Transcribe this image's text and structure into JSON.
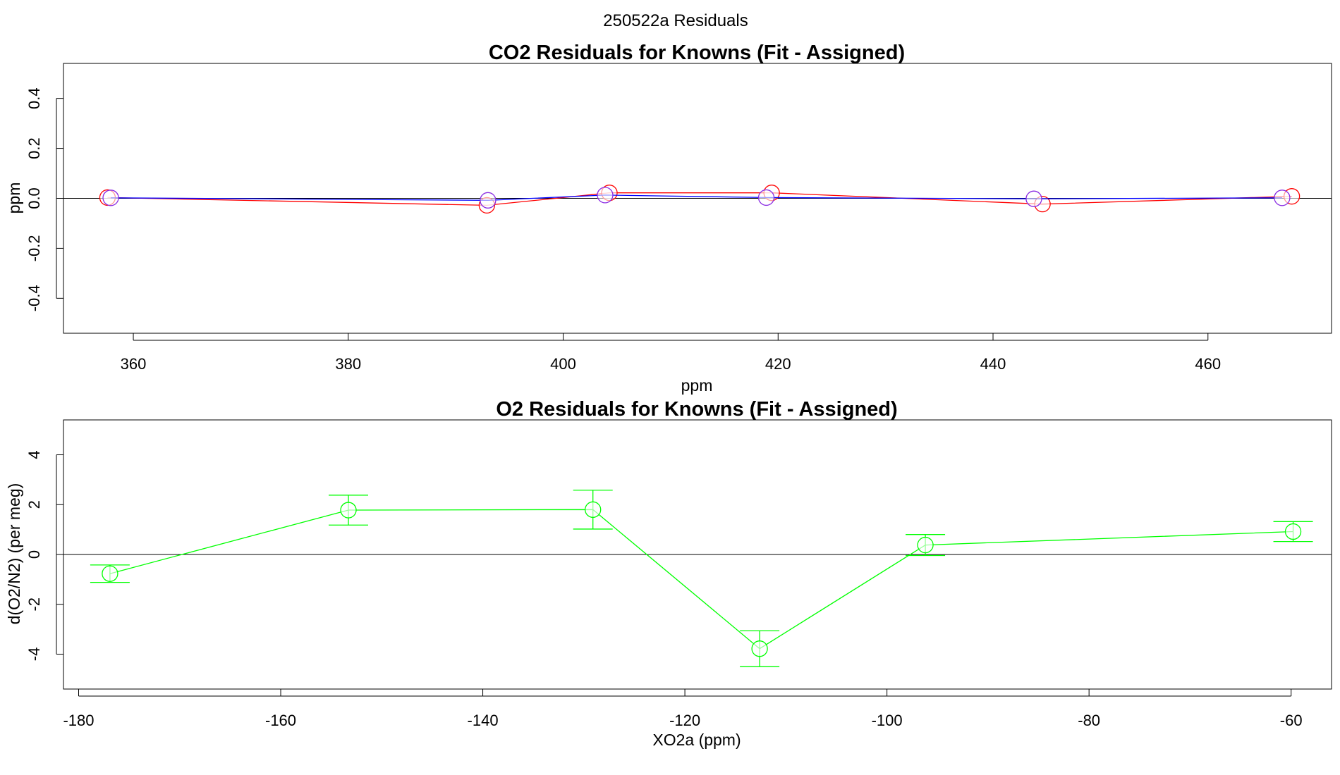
{
  "figure_title": "250522a  Residuals",
  "chart_data": [
    {
      "type": "line",
      "title": "CO2 Residuals for Knowns (Fit - Assigned)",
      "xlabel": "ppm",
      "ylabel": "ppm",
      "xlim": [
        353.5,
        471.5
      ],
      "ylim": [
        -0.54,
        0.54
      ],
      "xticks": [
        360,
        380,
        400,
        420,
        440,
        460
      ],
      "yticks": [
        -0.4,
        -0.2,
        0.0,
        0.2,
        0.4
      ],
      "reference_line_y": 0,
      "series": [
        {
          "color": "#ff0000",
          "x": [
            357.6,
            392.9,
            404.3,
            419.4,
            444.6,
            467.8
          ],
          "y": [
            0.003,
            -0.028,
            0.022,
            0.022,
            -0.023,
            0.008
          ]
        },
        {
          "color": "#0000ff",
          "x": [
            357.9,
            393.0,
            403.9,
            418.9,
            443.8,
            466.9
          ],
          "y": [
            0.002,
            -0.008,
            0.013,
            0.003,
            -0.002,
            0.002
          ]
        }
      ]
    },
    {
      "type": "line",
      "title": "O2 Residuals for Knowns (Fit - Assigned)",
      "xlabel": "XO2a (ppm)",
      "ylabel": "d(O2/N2) (per meg)",
      "xlim": [
        -181.5,
        -56
      ],
      "ylim": [
        -5.4,
        5.4
      ],
      "xticks": [
        -180,
        -160,
        -140,
        -120,
        -100,
        -80,
        -60
      ],
      "yticks": [
        -4,
        -2,
        0,
        2,
        4
      ],
      "reference_line_y": 0,
      "series": [
        {
          "color": "#00ff00",
          "x": [
            -176.9,
            -153.3,
            -129.1,
            -112.6,
            -96.2,
            -59.8
          ],
          "y": [
            -0.77,
            1.78,
            1.8,
            -3.78,
            0.38,
            0.92
          ],
          "err": [
            0.35,
            0.6,
            0.78,
            0.72,
            0.42,
            0.4
          ]
        }
      ]
    }
  ]
}
